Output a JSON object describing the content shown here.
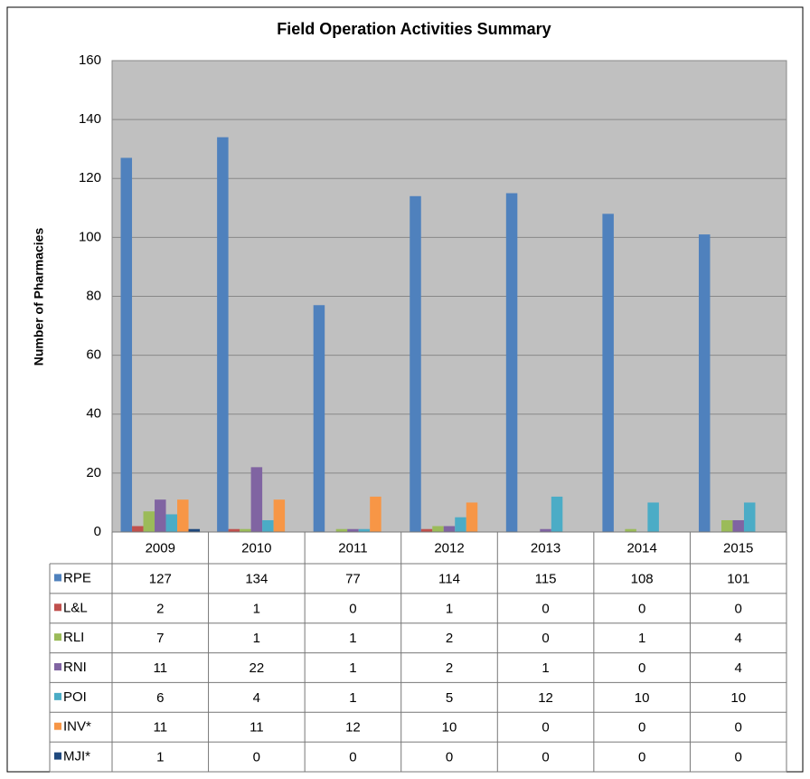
{
  "chart_data": {
    "type": "bar",
    "title": "Field Operation Activities Summary",
    "y_label": "Number of Pharmacies",
    "categories": [
      "2009",
      "2010",
      "2011",
      "2012",
      "2013",
      "2014",
      "2015"
    ],
    "series": [
      {
        "name": "RPE",
        "color": "#4f81bd",
        "values": [
          127,
          134,
          77,
          114,
          115,
          108,
          101
        ]
      },
      {
        "name": "L&L",
        "color": "#c0504d",
        "values": [
          2,
          1,
          0,
          1,
          0,
          0,
          0
        ]
      },
      {
        "name": "RLI",
        "color": "#9bbb59",
        "values": [
          7,
          1,
          1,
          2,
          0,
          1,
          4
        ]
      },
      {
        "name": "RNI",
        "color": "#8064a2",
        "values": [
          11,
          22,
          1,
          2,
          1,
          0,
          4
        ]
      },
      {
        "name": "POI",
        "color": "#4bacc6",
        "values": [
          6,
          4,
          1,
          5,
          12,
          10,
          10
        ]
      },
      {
        "name": "INV*",
        "color": "#f79646",
        "values": [
          11,
          11,
          12,
          10,
          0,
          0,
          0
        ]
      },
      {
        "name": "MJI*",
        "color": "#1f497d",
        "values": [
          1,
          0,
          0,
          0,
          0,
          0,
          0
        ]
      }
    ],
    "ylim": [
      0,
      160
    ],
    "yticks": [
      0,
      20,
      40,
      60,
      80,
      100,
      120,
      140,
      160
    ],
    "grid": true
  }
}
